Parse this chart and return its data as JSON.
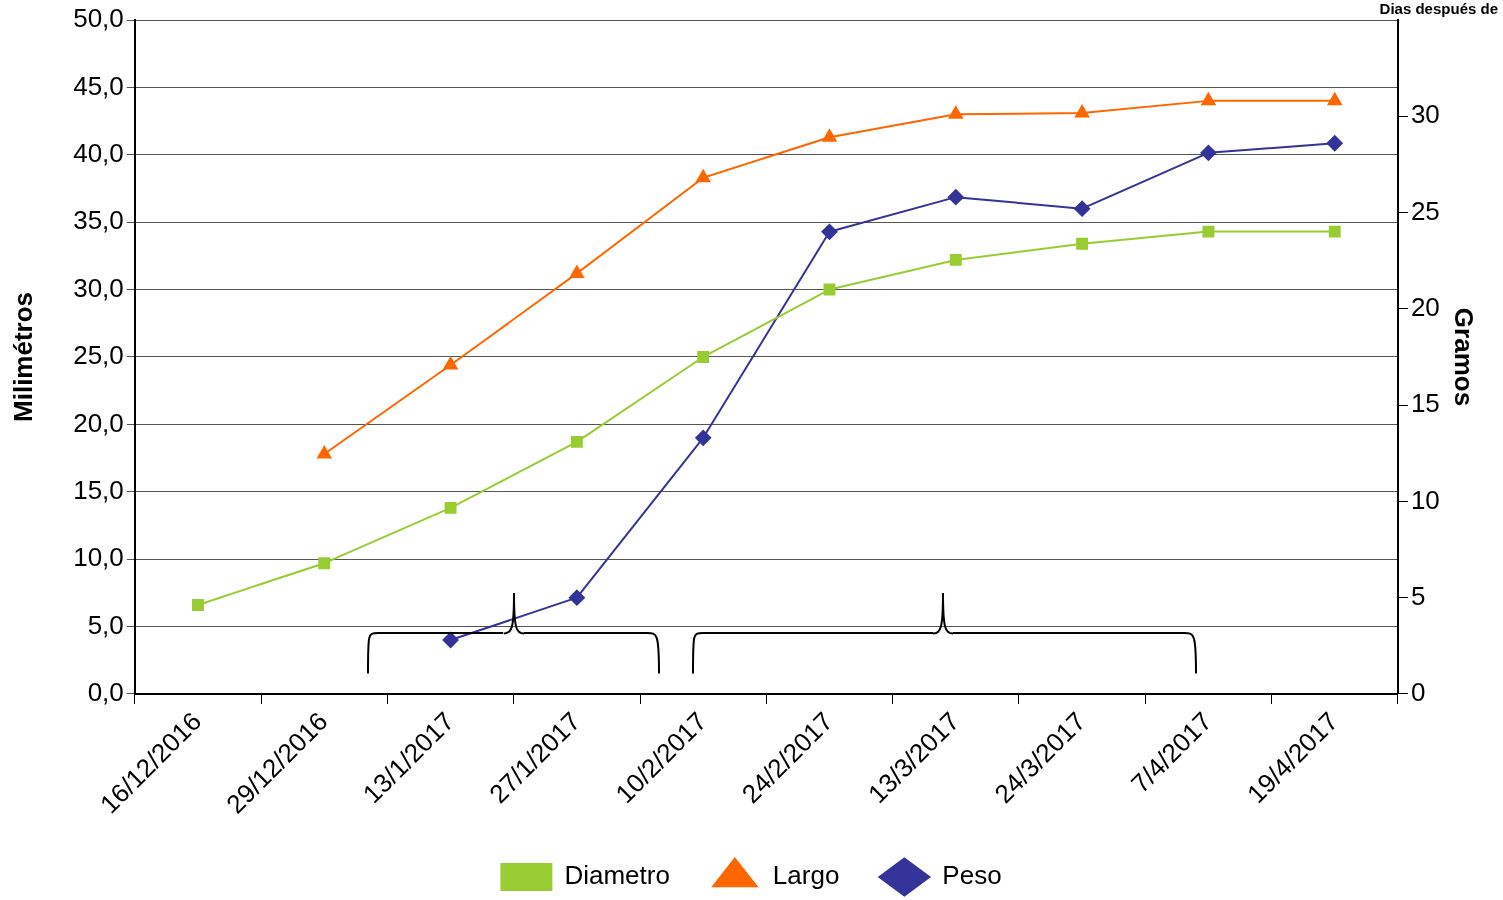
{
  "chart_data": {
    "type": "line",
    "ylabel": "Milimétros",
    "y2label": "Gramos",
    "annotations": [
      "Dias después de"
    ],
    "categories": [
      "16/12/2016",
      "29/12/2016",
      "13/1/2017",
      "27/1/2017",
      "10/2/2017",
      "24/2/2017",
      "13/3/2017",
      "24/3/2017",
      "7/4/2017",
      "19/4/2017"
    ],
    "series": [
      {
        "name": "Diametro",
        "color": "#99cc33",
        "marker": "square",
        "values": [
          6.6,
          9.7,
          13.8,
          18.7,
          25.0,
          30.0,
          32.2,
          33.4,
          34.3,
          34.3
        ]
      },
      {
        "name": "Largo",
        "color": "#ff6600",
        "marker": "triangle",
        "values": [
          null,
          17.8,
          24.4,
          31.2,
          38.3,
          41.3,
          43.0,
          43.1,
          44.0,
          44.0
        ]
      },
      {
        "name": "Peso",
        "color": "#333399",
        "marker": "diamond",
        "axis": "y2",
        "values": [
          null,
          null,
          2.8,
          5.0,
          13.3,
          24.0,
          25.8,
          25.2,
          28.1,
          28.6
        ]
      }
    ],
    "ylim": [
      0,
      50
    ],
    "yticks": [
      {
        "value": 0,
        "label": "0,0"
      },
      {
        "value": 5,
        "label": "5,0"
      },
      {
        "value": 10,
        "label": "10,0"
      },
      {
        "value": 15,
        "label": "15,0"
      },
      {
        "value": 20,
        "label": "20,0"
      },
      {
        "value": 25,
        "label": "25,0"
      },
      {
        "value": 30,
        "label": "30,0"
      },
      {
        "value": 35,
        "label": "35,0"
      },
      {
        "value": 40,
        "label": "40,0"
      },
      {
        "value": 45,
        "label": "45,0"
      },
      {
        "value": 50,
        "label": "50,0"
      }
    ],
    "y2lim": [
      0,
      35
    ],
    "y2ticks": [
      0,
      5,
      10,
      15,
      20,
      25,
      30
    ],
    "grid": "y",
    "legend": "bottom"
  }
}
